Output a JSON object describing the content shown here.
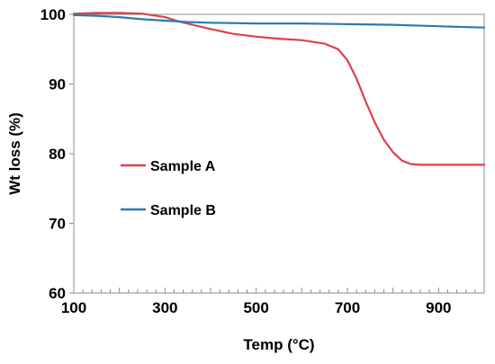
{
  "chart_data": {
    "type": "line",
    "title": "",
    "xlabel": "Temp (°C)",
    "ylabel": "Wt loss (%)",
    "xlim": [
      100,
      1000
    ],
    "ylim": [
      60,
      100
    ],
    "x_ticks": [
      100,
      300,
      500,
      700,
      900
    ],
    "y_ticks": [
      60,
      70,
      80,
      90,
      100
    ],
    "grid": false,
    "legend": "left-center",
    "series": [
      {
        "name": "Sample A",
        "color": "#d9434a",
        "x": [
          100,
          150,
          200,
          250,
          300,
          330,
          360,
          400,
          450,
          500,
          550,
          600,
          650,
          680,
          700,
          720,
          740,
          760,
          780,
          800,
          820,
          840,
          860,
          900,
          950,
          1000
        ],
        "y": [
          100.1,
          100.2,
          100.2,
          100.1,
          99.6,
          99.0,
          98.5,
          97.9,
          97.2,
          96.8,
          96.5,
          96.3,
          95.8,
          95.0,
          93.4,
          90.8,
          87.5,
          84.5,
          82.0,
          80.2,
          79.0,
          78.5,
          78.4,
          78.4,
          78.4,
          78.4
        ]
      },
      {
        "name": "Sample B",
        "color": "#2a7ab8",
        "x": [
          100,
          150,
          200,
          250,
          300,
          350,
          400,
          500,
          600,
          700,
          800,
          900,
          1000
        ],
        "y": [
          99.9,
          99.8,
          99.6,
          99.3,
          99.1,
          98.9,
          98.8,
          98.7,
          98.7,
          98.6,
          98.5,
          98.3,
          98.1
        ]
      }
    ]
  }
}
